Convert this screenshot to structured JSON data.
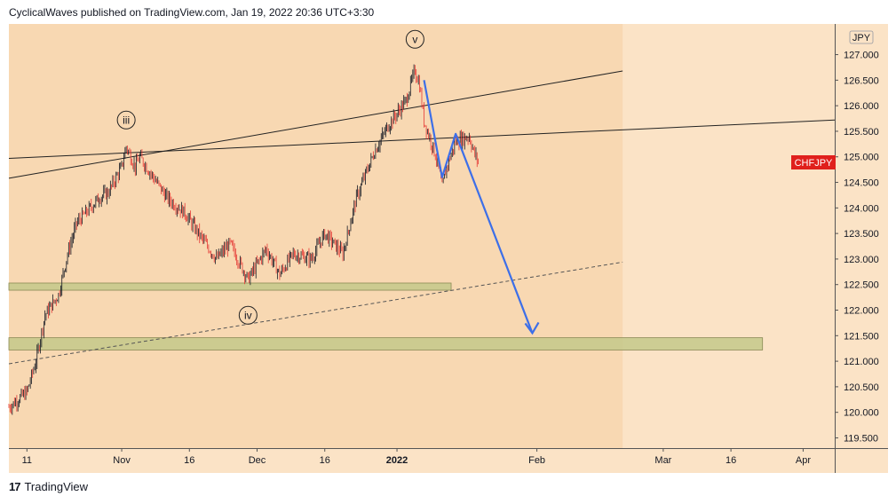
{
  "header": {
    "published_text": "CyclicalWaves published on TradingView.com, Jan 19, 2022 20:36 UTC+3:30"
  },
  "footer": {
    "logo_glyph": "17",
    "brand": "TradingView"
  },
  "colors": {
    "background": "#fbe3c6",
    "channel_fill": "#f8d8b2",
    "candle_up": "#131722",
    "candle_down": "#e53935",
    "forecast": "#3d6fe8",
    "zone": "#c4c98a",
    "zone_border": "#8a8a55",
    "symbol_badge": "#e0201c"
  },
  "chart_data": {
    "type": "candlestick",
    "symbol": "CHFJPY",
    "currency": "JPY",
    "ylim": [
      119.3,
      127.6
    ],
    "y_ticks": [
      "127.000",
      "126.500",
      "126.000",
      "125.500",
      "125.000",
      "124.500",
      "124.000",
      "123.500",
      "123.000",
      "122.500",
      "122.000",
      "121.500",
      "121.000",
      "120.500",
      "120.000",
      "119.500"
    ],
    "x_ticks": [
      {
        "label": "11",
        "date": "2021-10-11"
      },
      {
        "label": "Nov",
        "date": "2021-11-01"
      },
      {
        "label": "16",
        "date": "2021-11-16"
      },
      {
        "label": "Dec",
        "date": "2021-12-01"
      },
      {
        "label": "16",
        "date": "2021-12-16"
      },
      {
        "label": "2022",
        "date": "2022-01-01"
      },
      {
        "label": "Feb",
        "date": "2022-02-01"
      },
      {
        "label": "Mar",
        "date": "2022-03-01"
      },
      {
        "label": "16",
        "date": "2022-03-16"
      },
      {
        "label": "Apr",
        "date": "2022-04-01"
      }
    ],
    "x_range": [
      "2021-10-07",
      "2022-04-08"
    ],
    "price_path": [
      [
        "2021-10-07",
        120.1
      ],
      [
        "2021-10-11",
        120.4
      ],
      [
        "2021-10-13",
        121.0
      ],
      [
        "2021-10-15",
        121.9
      ],
      [
        "2021-10-18",
        122.3
      ],
      [
        "2021-10-20",
        123.1
      ],
      [
        "2021-10-22",
        123.7
      ],
      [
        "2021-10-25",
        124.0
      ],
      [
        "2021-10-27",
        124.2
      ],
      [
        "2021-10-29",
        124.3
      ],
      [
        "2021-11-01",
        124.8
      ],
      [
        "2021-11-02",
        125.2
      ],
      [
        "2021-11-04",
        124.8
      ],
      [
        "2021-11-05",
        125.0
      ],
      [
        "2021-11-08",
        124.6
      ],
      [
        "2021-11-11",
        124.2
      ],
      [
        "2021-11-15",
        123.9
      ],
      [
        "2021-11-18",
        123.5
      ],
      [
        "2021-11-22",
        123.0
      ],
      [
        "2021-11-25",
        123.3
      ],
      [
        "2021-11-29",
        122.6
      ],
      [
        "2021-12-01",
        122.9
      ],
      [
        "2021-12-03",
        123.2
      ],
      [
        "2021-12-06",
        122.7
      ],
      [
        "2021-12-09",
        123.1
      ],
      [
        "2021-12-13",
        123.0
      ],
      [
        "2021-12-16",
        123.5
      ],
      [
        "2021-12-20",
        123.1
      ],
      [
        "2021-12-23",
        124.2
      ],
      [
        "2021-12-27",
        125.1
      ],
      [
        "2021-12-30",
        125.6
      ],
      [
        "2022-01-03",
        126.1
      ],
      [
        "2022-01-05",
        126.7
      ],
      [
        "2022-01-06",
        126.4
      ],
      [
        "2022-01-07",
        125.7
      ],
      [
        "2022-01-10",
        124.9
      ],
      [
        "2022-01-11",
        124.4
      ],
      [
        "2022-01-12",
        124.8
      ],
      [
        "2022-01-14",
        125.3
      ],
      [
        "2022-01-17",
        125.4
      ],
      [
        "2022-01-18",
        125.1
      ],
      [
        "2022-01-19",
        124.9
      ]
    ],
    "annotations": [
      {
        "label": "iii",
        "date": "2021-11-02",
        "price": 125.72
      },
      {
        "label": "v",
        "date": "2022-01-05",
        "price": 127.3
      },
      {
        "label": "iv",
        "date": "2021-11-29",
        "price": 121.9
      }
    ],
    "zones": [
      {
        "from": "2021-10-07",
        "to": "2022-01-13",
        "low": 122.39,
        "high": 122.53
      },
      {
        "from": "2021-10-07",
        "to": "2022-03-23",
        "low": 121.22,
        "high": 121.46
      }
    ],
    "trendlines": [
      {
        "style": "solid",
        "from": [
          "2021-10-07",
          124.58
        ],
        "to": [
          "2022-02-20",
          126.68
        ]
      },
      {
        "style": "solid",
        "from": [
          "2021-10-07",
          124.97
        ],
        "to": [
          "2022-04-08",
          125.72
        ]
      },
      {
        "style": "dashed",
        "from": [
          "2021-10-07",
          120.95
        ],
        "to": [
          "2022-02-20",
          122.94
        ]
      }
    ],
    "forecast_path": [
      [
        "2022-01-07",
        126.5
      ],
      [
        "2022-01-11",
        124.6
      ],
      [
        "2022-01-14",
        125.45
      ],
      [
        "2022-01-31",
        121.55
      ]
    ],
    "shaded_until": "2022-02-20"
  }
}
